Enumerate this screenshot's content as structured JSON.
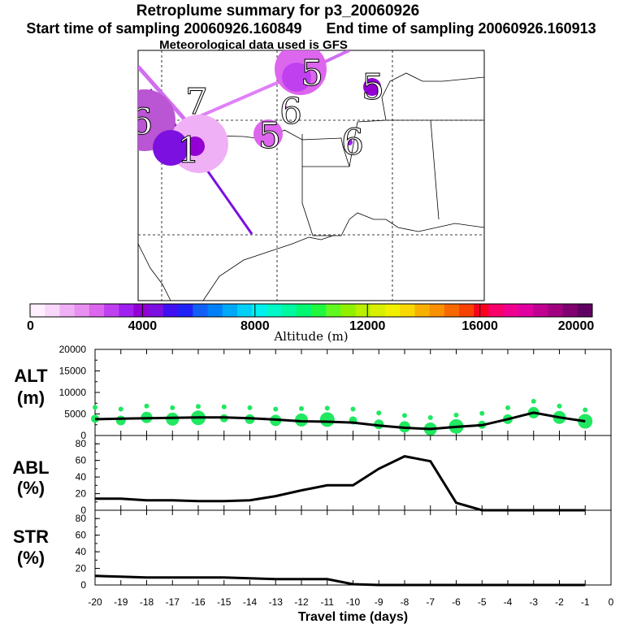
{
  "title": "Retroplume summary for p3_20060926",
  "start_label": "Start time of sampling 20060926.160849",
  "end_label": "End time of sampling 20060926.160913",
  "met_label": "Meteorological data used is GFS",
  "map": {
    "plumes": [
      {
        "label": "6",
        "color": "#ba55d3",
        "size": "large",
        "alt": 4200
      },
      {
        "label": "5",
        "color": "#9400d3",
        "size": "small",
        "alt": 2800
      },
      {
        "label": "5",
        "color": "#ee82ee",
        "size": "small",
        "alt": 1200
      },
      {
        "label": "6",
        "color": "#dd66ee",
        "size": "medium",
        "alt": 1500
      },
      {
        "label": "6",
        "color": "#a020f0",
        "size": "small",
        "alt": 3200
      },
      {
        "label": "5",
        "color": "#e060ee",
        "size": "large",
        "alt": 1800
      },
      {
        "label": "7",
        "color": "#f0b0f5",
        "size": "large",
        "alt": 500
      },
      {
        "label": "1",
        "color": "#7b10e0",
        "size": "medium",
        "alt": 3600
      }
    ],
    "trajectory_colors": [
      "#d070f0",
      "#7b10e0",
      "#e080f8"
    ]
  },
  "colorbar": {
    "ticks": [
      "0",
      "4000",
      "8000",
      "12000",
      "16000",
      "20000"
    ],
    "label": "Altitude (m)",
    "colors": [
      "#fff0ff",
      "#f8d8fa",
      "#f0b0f5",
      "#e890f0",
      "#dd66ee",
      "#c040f0",
      "#a020f0",
      "#9400d3",
      "#7b10e0",
      "#4010f0",
      "#2020f8",
      "#1060f8",
      "#0080f8",
      "#00a8f8",
      "#00d0f8",
      "#00f0f0",
      "#00f8c8",
      "#00f8a0",
      "#00f870",
      "#20f840",
      "#60f820",
      "#90f000",
      "#b8f000",
      "#d8f000",
      "#f0f000",
      "#f8d800",
      "#f8b000",
      "#f89000",
      "#f86800",
      "#f84000",
      "#f80020",
      "#f8006a",
      "#f00090",
      "#e000a0",
      "#c00090",
      "#a00080",
      "#800070",
      "#600060"
    ]
  },
  "chart_data": [
    {
      "type": "line",
      "panel": "ALT",
      "ylabel_top": "ALT",
      "ylabel_unit": "(m)",
      "ylim": [
        0,
        20000
      ],
      "yticks": [
        "20000",
        "15000",
        "10000",
        "5000",
        "0"
      ],
      "x": [
        -20,
        -19,
        -18,
        -17,
        -16,
        -15,
        -14,
        -13,
        -12,
        -11,
        -10,
        -9,
        -8,
        -7,
        -6,
        -5,
        -4,
        -3,
        -2,
        -1
      ],
      "values": [
        3800,
        3900,
        4000,
        4100,
        4200,
        4200,
        4000,
        3700,
        3300,
        3200,
        3000,
        2300,
        1800,
        1500,
        2000,
        2400,
        3800,
        5300,
        4200,
        3300
      ],
      "markers": [
        3900,
        3500,
        4200,
        3800,
        4100,
        4000,
        3800,
        3500,
        3600,
        3700,
        3500,
        2600,
        2000,
        1500,
        2100,
        2500,
        3800,
        5300,
        4200,
        3300
      ]
    },
    {
      "type": "line",
      "panel": "ABL",
      "ylabel_top": "ABL",
      "ylabel_unit": "(%)",
      "ylim": [
        0,
        90
      ],
      "yticks": [
        "80",
        "60",
        "40",
        "20",
        "0"
      ],
      "x": [
        -20,
        -19,
        -18,
        -17,
        -16,
        -15,
        -14,
        -13,
        -12,
        -11,
        -10,
        -9,
        -8,
        -7,
        -6,
        -5,
        -4,
        -3,
        -2,
        -1
      ],
      "values": [
        14,
        14,
        12,
        12,
        11,
        11,
        12,
        17,
        24,
        30,
        30,
        50,
        65,
        59,
        9,
        0,
        0,
        0,
        0,
        0
      ]
    },
    {
      "type": "line",
      "panel": "STR",
      "ylabel_top": "STR",
      "ylabel_unit": "(%)",
      "ylim": [
        0,
        90
      ],
      "yticks": [
        "80",
        "60",
        "40",
        "20",
        "0"
      ],
      "x": [
        -20,
        -19,
        -18,
        -17,
        -16,
        -15,
        -14,
        -13,
        -12,
        -11,
        -10,
        -9,
        -8,
        -7,
        -6,
        -5,
        -4,
        -3,
        -2,
        -1
      ],
      "values": [
        11,
        10,
        9,
        9,
        9,
        9,
        8,
        7,
        7,
        7,
        1,
        0,
        0,
        0,
        0,
        0,
        0,
        0,
        0,
        0
      ]
    }
  ],
  "xaxis": {
    "ticks": [
      "-20",
      "-19",
      "-18",
      "-17",
      "-16",
      "-15",
      "-14",
      "-13",
      "-12",
      "-11",
      "-10",
      "-9",
      "-8",
      "-7",
      "-6",
      "-5",
      "-4",
      "-3",
      "-2",
      "-1",
      "0"
    ],
    "label": "Travel time (days)"
  }
}
